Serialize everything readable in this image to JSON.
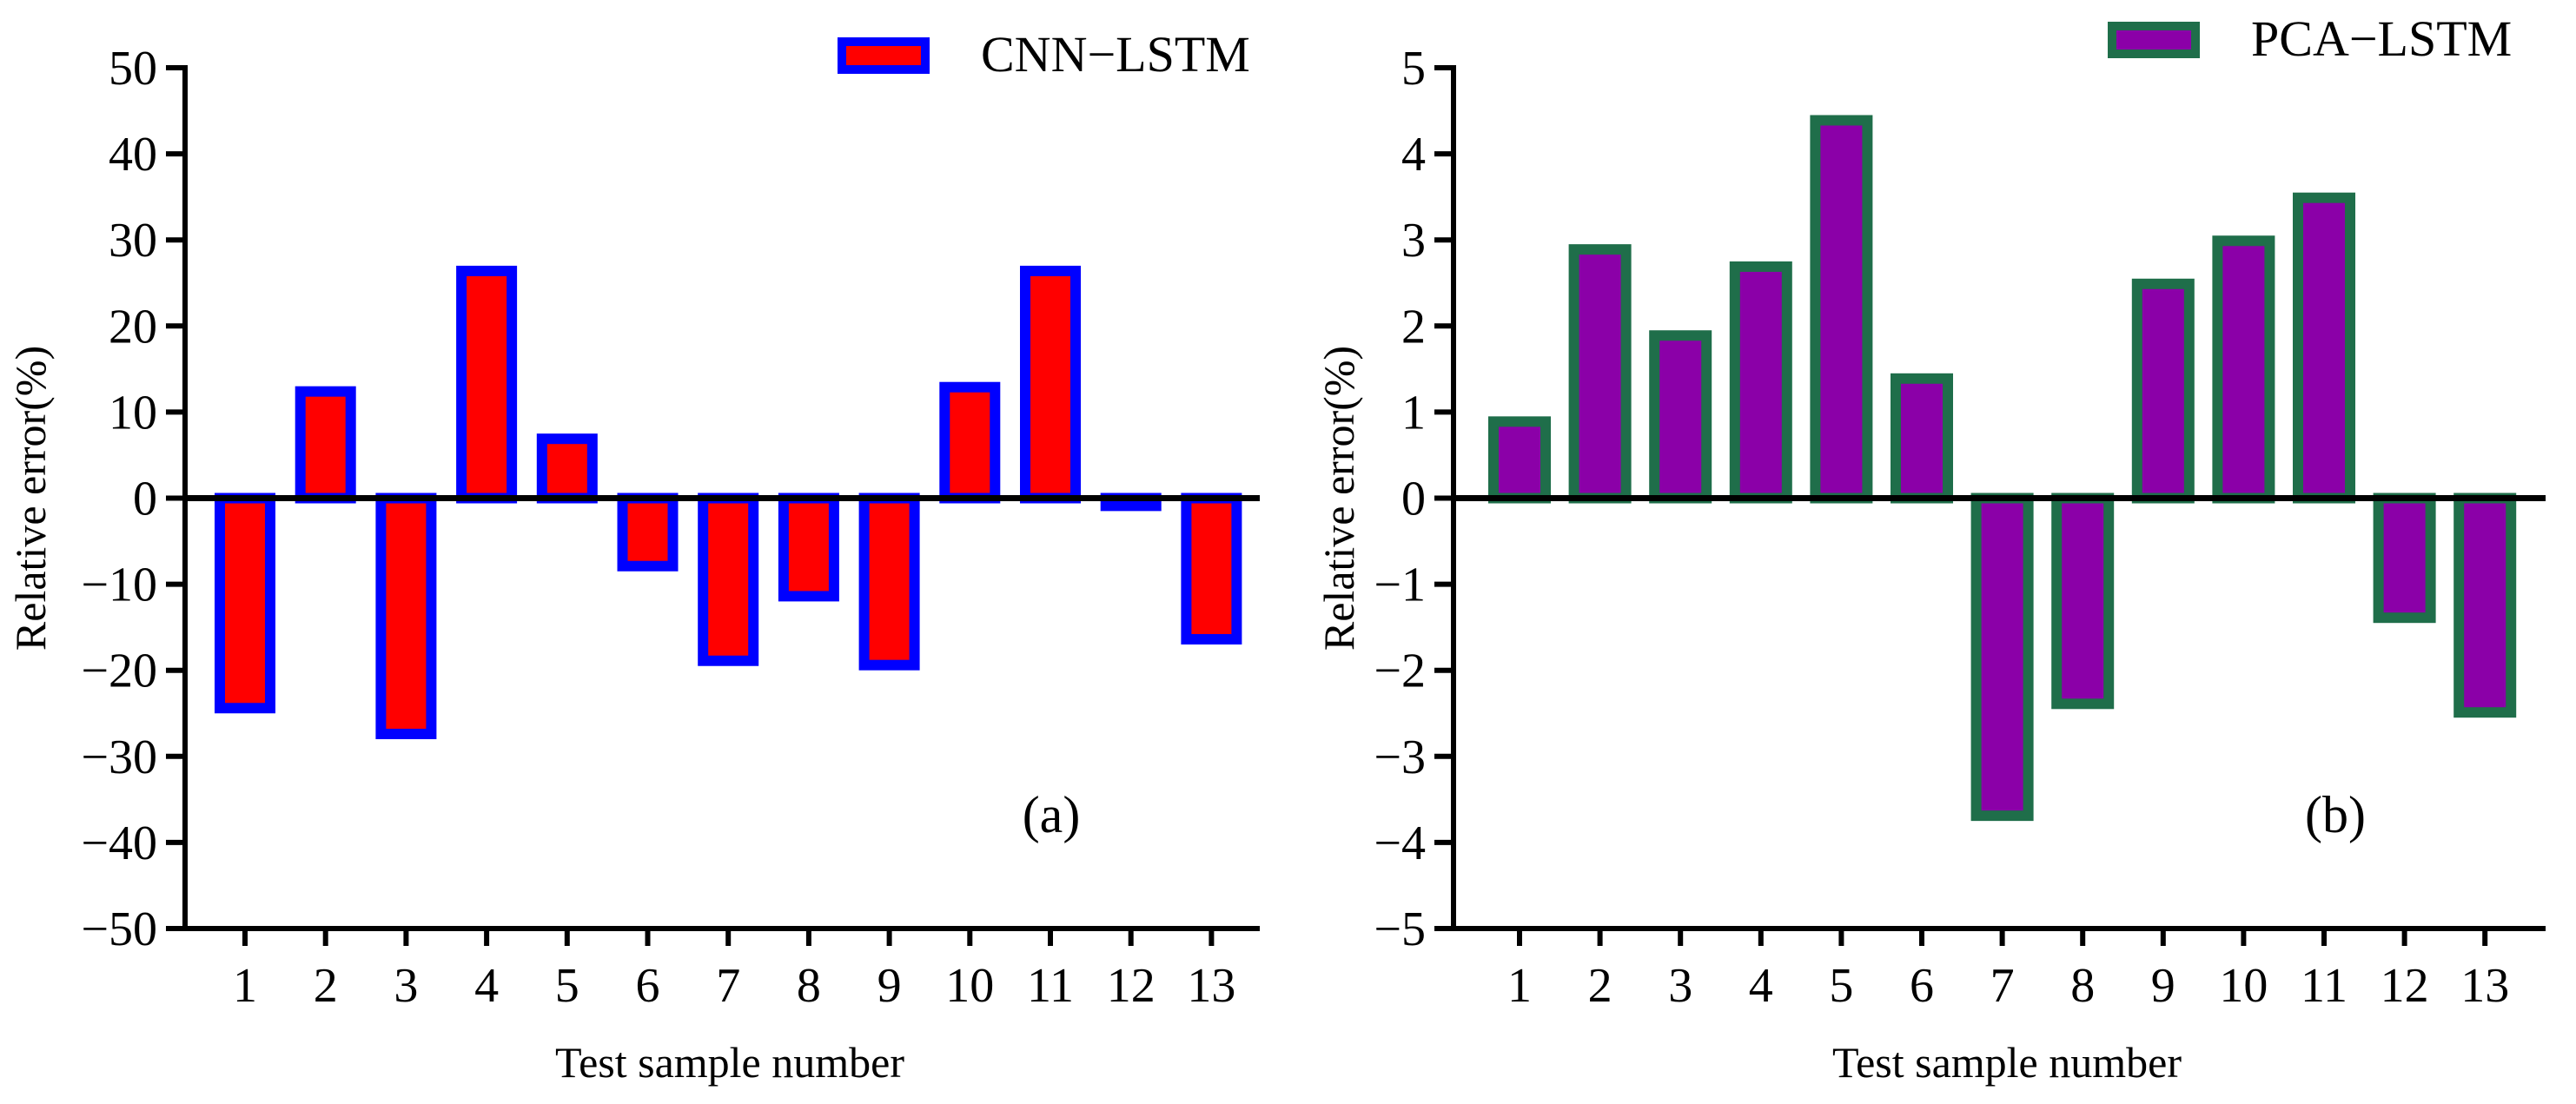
{
  "chart_data": [
    {
      "type": "bar",
      "panel_tag": "(a)",
      "legend_position": "top-right",
      "legend": "CNN−LSTM",
      "xlabel": "Test sample number",
      "ylabel": "Relative error(%)",
      "categories": [
        "1",
        "2",
        "3",
        "4",
        "5",
        "6",
        "7",
        "8",
        "9",
        "10",
        "11",
        "12",
        "13"
      ],
      "series": [
        {
          "name": "CNN−LSTM",
          "values": [
            -25,
            13,
            -28,
            27,
            7.5,
            -8.5,
            -19.5,
            -12,
            -20,
            13.5,
            27,
            -1.5,
            -17
          ]
        }
      ],
      "ylim": [
        -50,
        50
      ],
      "yticks": [
        50,
        40,
        30,
        20,
        10,
        0,
        -10,
        -20,
        -30,
        -40,
        -50
      ],
      "ytick_labels": [
        "50",
        "40",
        "30",
        "20",
        "10",
        "0",
        "−10",
        "−20",
        "−30",
        "−40",
        "−50"
      ],
      "colors": {
        "fill": "#ff0000",
        "edge": "#0000ff"
      }
    },
    {
      "type": "bar",
      "panel_tag": "(b)",
      "legend_position": "top-right",
      "legend": "PCA−LSTM",
      "xlabel": "Test sample number",
      "ylabel": "Relative error(%)",
      "categories": [
        "1",
        "2",
        "3",
        "4",
        "5",
        "6",
        "7",
        "8",
        "9",
        "10",
        "11",
        "12",
        "13"
      ],
      "series": [
        {
          "name": "PCA−LSTM",
          "values": [
            0.95,
            2.95,
            1.95,
            2.75,
            4.45,
            1.45,
            -3.75,
            -2.45,
            2.55,
            3.05,
            3.55,
            -1.45,
            -2.55
          ]
        }
      ],
      "ylim": [
        -5,
        5
      ],
      "yticks": [
        5,
        4,
        3,
        2,
        1,
        0,
        -1,
        -2,
        -3,
        -4,
        -5
      ],
      "ytick_labels": [
        "5",
        "4",
        "3",
        "2",
        "1",
        "0",
        "−1",
        "−2",
        "−3",
        "−4",
        "−5"
      ],
      "colors": {
        "fill": "#8b00a8",
        "edge": "#1f6e4a"
      }
    }
  ]
}
